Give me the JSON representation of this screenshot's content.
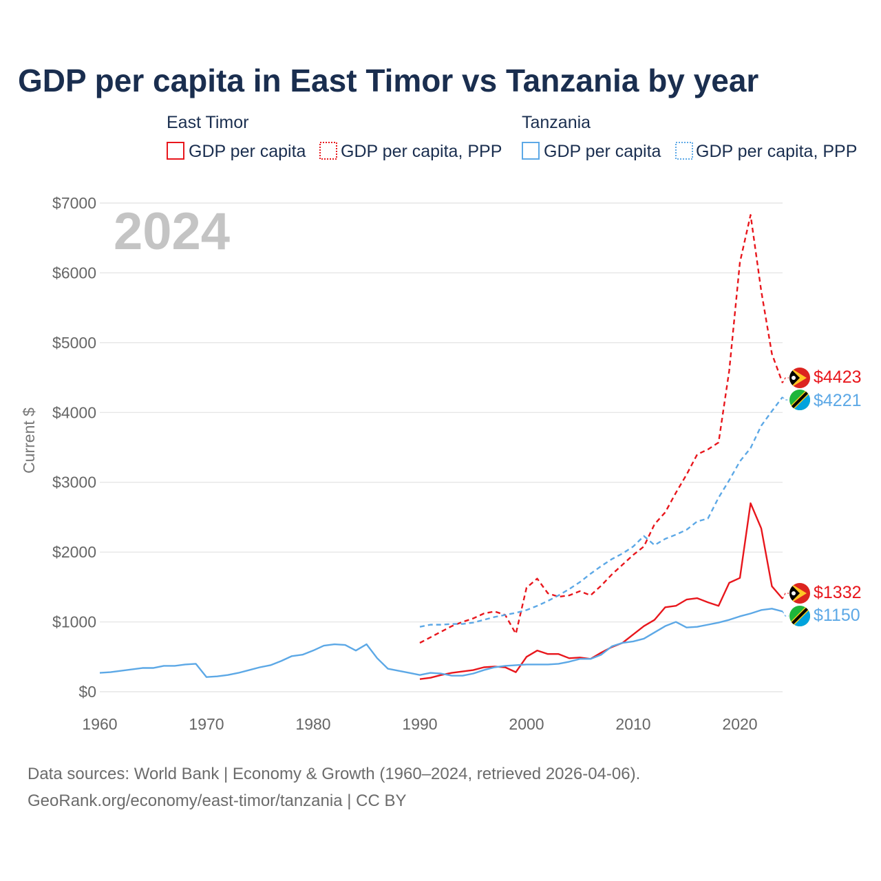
{
  "title": "GDP per capita in East Timor vs Tanzania by year",
  "year_display": "2024",
  "colors": {
    "east_timor": "#e8161c",
    "tanzania": "#5ca8e6"
  },
  "legend": {
    "east_timor": {
      "title": "East Timor",
      "gdp_label": "GDP per capita",
      "ppp_label": "GDP per capita, PPP"
    },
    "tanzania": {
      "title": "Tanzania",
      "gdp_label": "GDP per capita",
      "ppp_label": "GDP per capita, PPP"
    }
  },
  "source": {
    "line1": "Data sources: World Bank | Economy & Growth (1960–2024, retrieved 2026-04-06).",
    "line2": "GeoRank.org/economy/east-timor/tanzania | CC BY"
  },
  "chart_data": {
    "type": "line",
    "title": "GDP per capita in East Timor vs Tanzania by year",
    "xlabel": "",
    "ylabel": "Current $",
    "xlim": [
      1960,
      2024
    ],
    "ylim": [
      0,
      7000
    ],
    "x_ticks": [
      1960,
      1970,
      1980,
      1990,
      2000,
      2010,
      2020
    ],
    "y_ticks": [
      0,
      1000,
      2000,
      3000,
      4000,
      5000,
      6000,
      7000
    ],
    "y_tick_labels": [
      "$0",
      "$1000",
      "$2000",
      "$3000",
      "$4000",
      "$5000",
      "$6000",
      "$7000"
    ],
    "grid": true,
    "series": [
      {
        "name": "East Timor GDP per capita",
        "country": "east_timor",
        "style": "solid",
        "end_label": "$1332",
        "x": [
          1990,
          1991,
          1992,
          1993,
          1994,
          1995,
          1996,
          1997,
          1998,
          1999,
          2000,
          2001,
          2002,
          2003,
          2004,
          2005,
          2006,
          2007,
          2008,
          2009,
          2010,
          2011,
          2012,
          2013,
          2014,
          2015,
          2016,
          2017,
          2018,
          2019,
          2020,
          2021,
          2022,
          2023,
          2024
        ],
        "values": [
          180,
          200,
          240,
          270,
          290,
          310,
          350,
          360,
          350,
          280,
          500,
          590,
          540,
          540,
          480,
          490,
          470,
          560,
          640,
          700,
          820,
          940,
          1030,
          1210,
          1230,
          1320,
          1340,
          1280,
          1230,
          1560,
          1630,
          2700,
          2340,
          1510,
          1332
        ]
      },
      {
        "name": "East Timor GDP per capita, PPP",
        "country": "east_timor",
        "style": "dashed",
        "end_label": "$4423",
        "x": [
          1990,
          1991,
          1992,
          1993,
          1994,
          1995,
          1996,
          1997,
          1998,
          1999,
          2000,
          2001,
          2002,
          2003,
          2004,
          2005,
          2006,
          2007,
          2008,
          2009,
          2010,
          2011,
          2012,
          2013,
          2014,
          2015,
          2016,
          2017,
          2018,
          2019,
          2020,
          2021,
          2022,
          2023,
          2024
        ],
        "values": [
          700,
          780,
          860,
          940,
          1000,
          1050,
          1120,
          1150,
          1100,
          830,
          1490,
          1620,
          1410,
          1360,
          1380,
          1440,
          1380,
          1520,
          1680,
          1820,
          1960,
          2080,
          2400,
          2570,
          2850,
          3110,
          3400,
          3470,
          3570,
          4600,
          6150,
          6830,
          5740,
          4840,
          4423
        ]
      },
      {
        "name": "Tanzania GDP per capita",
        "country": "tanzania",
        "style": "solid",
        "end_label": "$1150",
        "x": [
          1960,
          1961,
          1962,
          1963,
          1964,
          1965,
          1966,
          1967,
          1968,
          1969,
          1970,
          1971,
          1972,
          1973,
          1974,
          1975,
          1976,
          1977,
          1978,
          1979,
          1980,
          1981,
          1982,
          1983,
          1984,
          1985,
          1986,
          1987,
          1988,
          1989,
          1990,
          1991,
          1992,
          1993,
          1994,
          1995,
          1996,
          1997,
          1998,
          1999,
          2000,
          2001,
          2002,
          2003,
          2004,
          2005,
          2006,
          2007,
          2008,
          2009,
          2010,
          2011,
          2012,
          2013,
          2014,
          2015,
          2016,
          2017,
          2018,
          2019,
          2020,
          2021,
          2022,
          2023,
          2024
        ],
        "values": [
          270,
          280,
          300,
          320,
          340,
          340,
          370,
          370,
          390,
          400,
          210,
          220,
          240,
          270,
          310,
          350,
          380,
          440,
          510,
          530,
          590,
          660,
          680,
          670,
          590,
          680,
          480,
          330,
          300,
          270,
          240,
          270,
          260,
          230,
          230,
          260,
          310,
          350,
          370,
          380,
          390,
          390,
          390,
          400,
          430,
          470,
          470,
          530,
          650,
          700,
          720,
          760,
          850,
          940,
          1000,
          920,
          930,
          960,
          990,
          1030,
          1080,
          1120,
          1170,
          1190,
          1150
        ]
      },
      {
        "name": "Tanzania GDP per capita, PPP",
        "country": "tanzania",
        "style": "dashed",
        "end_label": "$4221",
        "x": [
          1990,
          1991,
          1992,
          1993,
          1994,
          1995,
          1996,
          1997,
          1998,
          1999,
          2000,
          2001,
          2002,
          2003,
          2004,
          2005,
          2006,
          2007,
          2008,
          2009,
          2010,
          2011,
          2012,
          2013,
          2014,
          2015,
          2016,
          2017,
          2018,
          2019,
          2020,
          2021,
          2022,
          2023,
          2024
        ],
        "values": [
          930,
          960,
          960,
          970,
          970,
          990,
          1030,
          1070,
          1100,
          1130,
          1170,
          1230,
          1300,
          1380,
          1470,
          1570,
          1690,
          1800,
          1900,
          1980,
          2080,
          2230,
          2100,
          2190,
          2250,
          2320,
          2440,
          2480,
          2780,
          3030,
          3300,
          3490,
          3810,
          4020,
          4221
        ]
      }
    ]
  }
}
